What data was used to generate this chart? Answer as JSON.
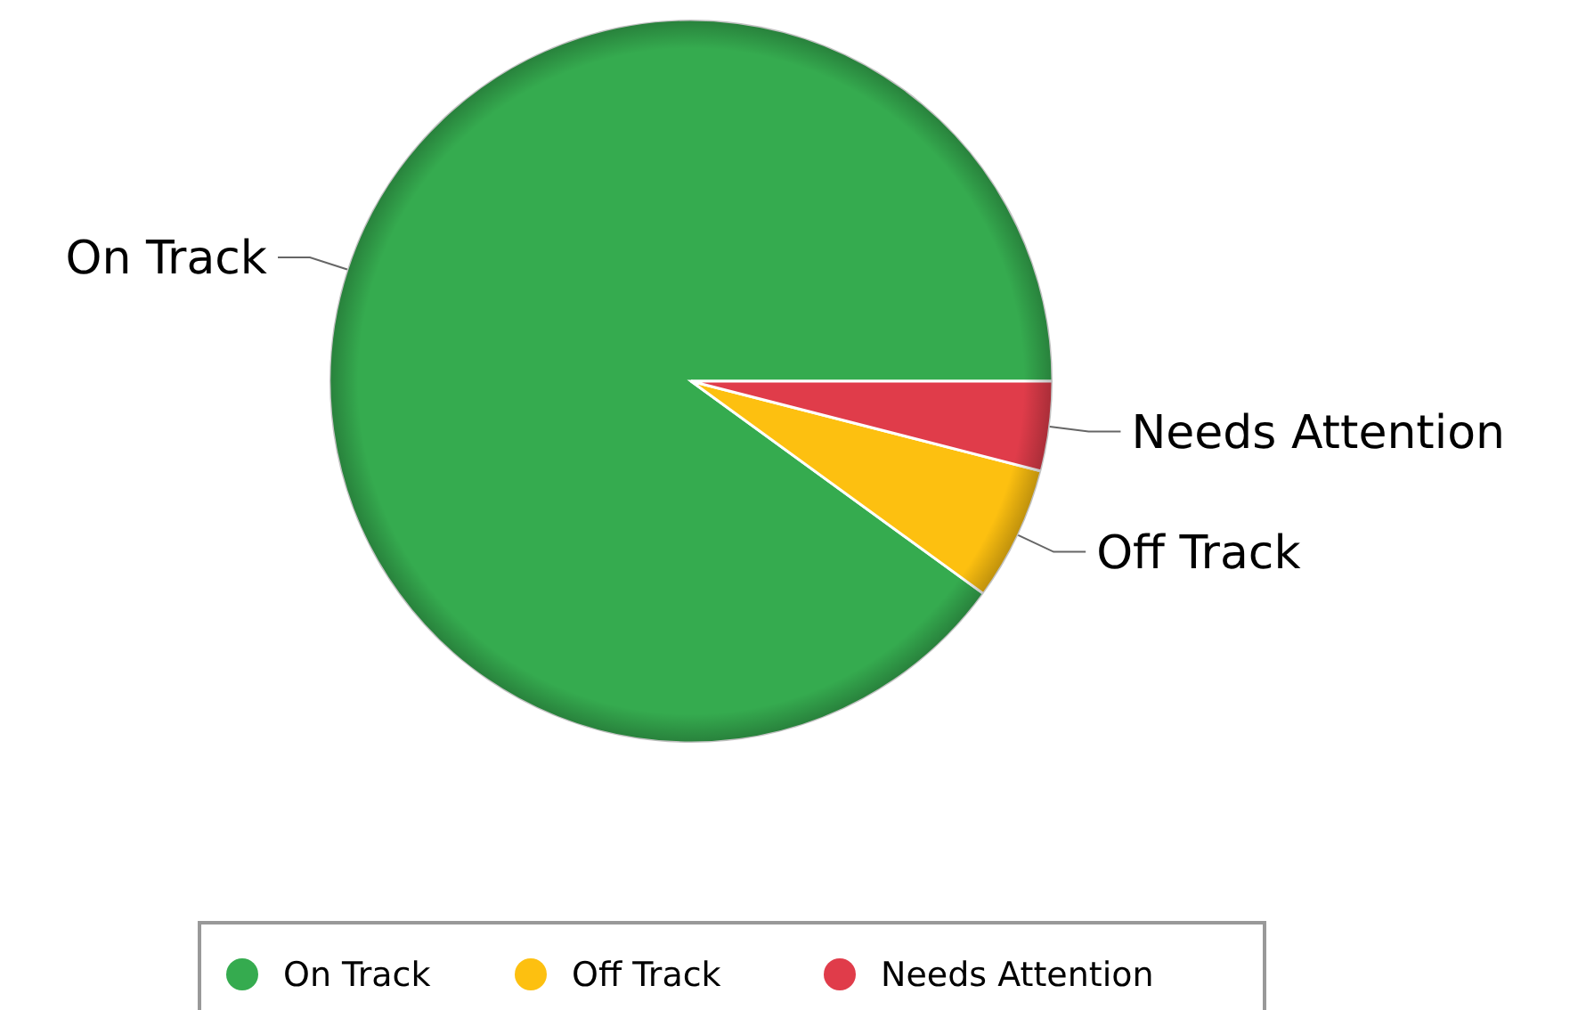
{
  "chart_data": {
    "type": "pie",
    "categories": [
      "On Track",
      "Off Track",
      "Needs Attention"
    ],
    "values": [
      90,
      6,
      4
    ],
    "colors": [
      "#35ab4f",
      "#fdc010",
      "#e03c4a"
    ],
    "legend": "bottom"
  }
}
